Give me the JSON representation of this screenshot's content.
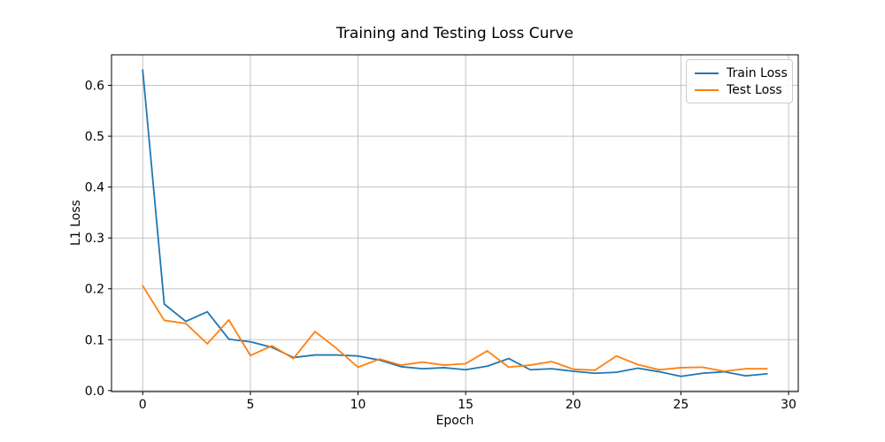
{
  "chart_data": {
    "type": "line",
    "title": "Training and Testing Loss Curve",
    "xlabel": "Epoch",
    "ylabel": "L1 Loss",
    "x": [
      0,
      1,
      2,
      3,
      4,
      5,
      6,
      7,
      8,
      9,
      10,
      11,
      12,
      13,
      14,
      15,
      16,
      17,
      18,
      19,
      20,
      21,
      22,
      23,
      24,
      25,
      26,
      27,
      28,
      29
    ],
    "series": [
      {
        "name": "Train Loss",
        "color": "#1f77b4",
        "values": [
          0.63,
          0.17,
          0.136,
          0.155,
          0.101,
          0.096,
          0.085,
          0.065,
          0.07,
          0.07,
          0.068,
          0.06,
          0.047,
          0.043,
          0.045,
          0.041,
          0.048,
          0.063,
          0.041,
          0.043,
          0.038,
          0.034,
          0.036,
          0.044,
          0.037,
          0.028,
          0.034,
          0.037,
          0.029,
          0.033
        ]
      },
      {
        "name": "Test Loss",
        "color": "#ff7f0e",
        "values": [
          0.206,
          0.138,
          0.132,
          0.092,
          0.139,
          0.069,
          0.088,
          0.063,
          0.116,
          0.083,
          0.046,
          0.062,
          0.05,
          0.056,
          0.05,
          0.053,
          0.078,
          0.046,
          0.05,
          0.057,
          0.042,
          0.04,
          0.068,
          0.051,
          0.041,
          0.045,
          0.046,
          0.038,
          0.043,
          0.043
        ]
      }
    ],
    "xlim": [
      -1.45,
      30.45
    ],
    "ylim": [
      -0.002,
      0.66
    ],
    "x_ticks": [
      0,
      5,
      10,
      15,
      20,
      25,
      30
    ],
    "y_ticks": [
      0.0,
      0.1,
      0.2,
      0.3,
      0.4,
      0.5,
      0.6
    ],
    "grid": true,
    "grid_color": "#c3c3c3",
    "axis_color": "#000000",
    "legend_position": "upper right"
  }
}
